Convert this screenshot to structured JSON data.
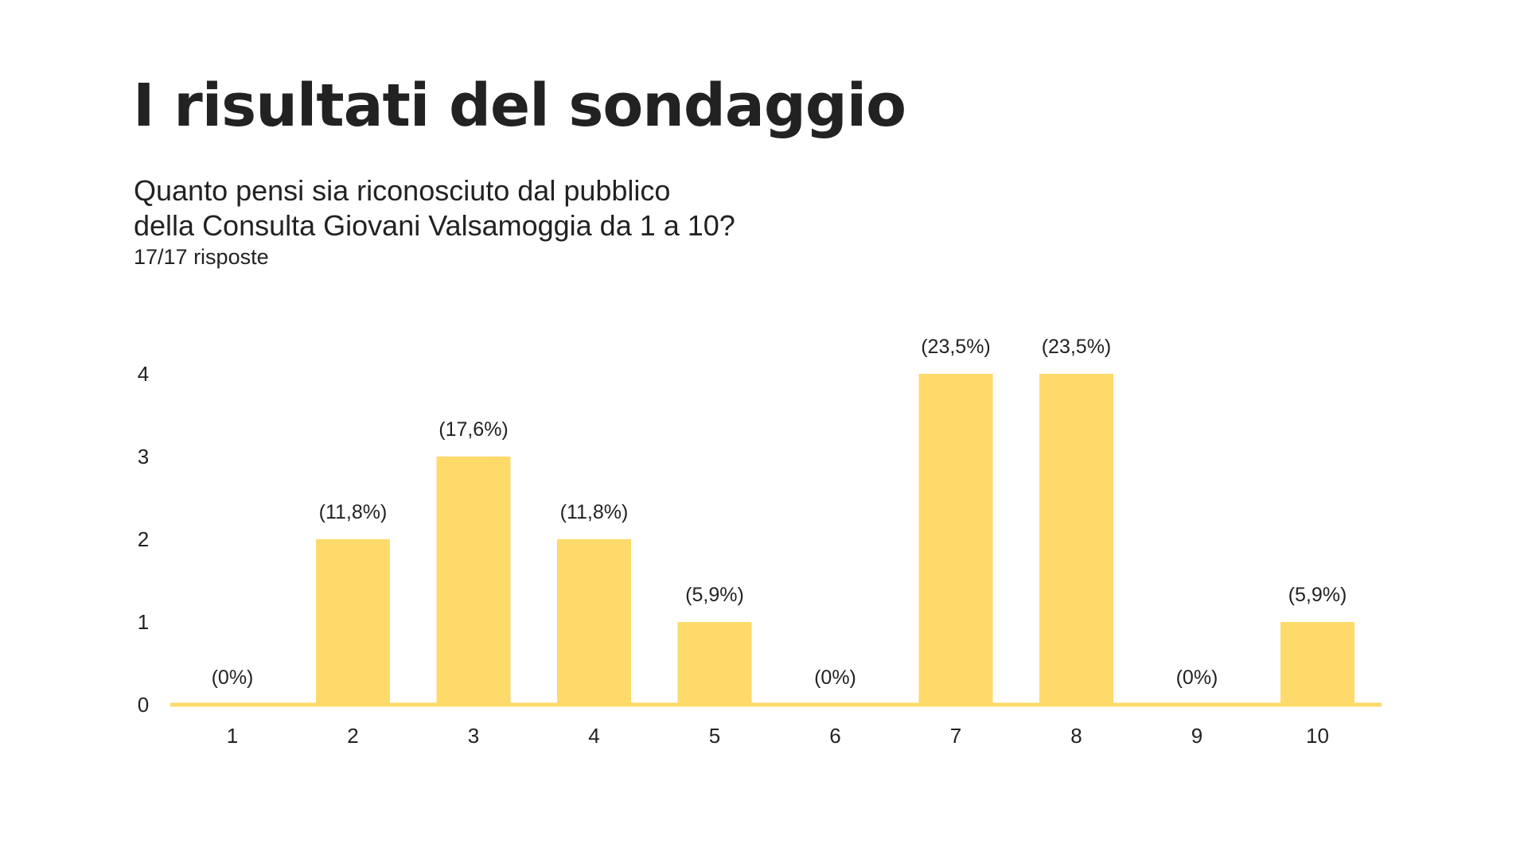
{
  "header": {
    "title": "I risultati del sondaggio",
    "question_line1": "Quanto pensi sia riconosciuto dal pubblico",
    "question_line2": "della Consulta Giovani Valsamoggia da 1 a 10?",
    "responses": "17/17 risposte"
  },
  "colors": {
    "bar": "#FDDA6A",
    "baseline": "#FDDA6A",
    "text": "#222222"
  },
  "chart_data": {
    "type": "bar",
    "categories": [
      "1",
      "2",
      "3",
      "4",
      "5",
      "6",
      "7",
      "8",
      "9",
      "10"
    ],
    "values": [
      0,
      2,
      3,
      2,
      1,
      0,
      4,
      4,
      0,
      1
    ],
    "data_labels": [
      "(0%)",
      "(11,8%)",
      "(17,6%)",
      "(11,8%)",
      "(5,9%)",
      "(0%)",
      "(23,5%)",
      "(23,5%)",
      "(0%)",
      "(5,9%)"
    ],
    "yticks": [
      "0",
      "1",
      "2",
      "3",
      "4"
    ],
    "ylim": [
      0,
      4
    ],
    "grid": false,
    "legend": "none"
  }
}
